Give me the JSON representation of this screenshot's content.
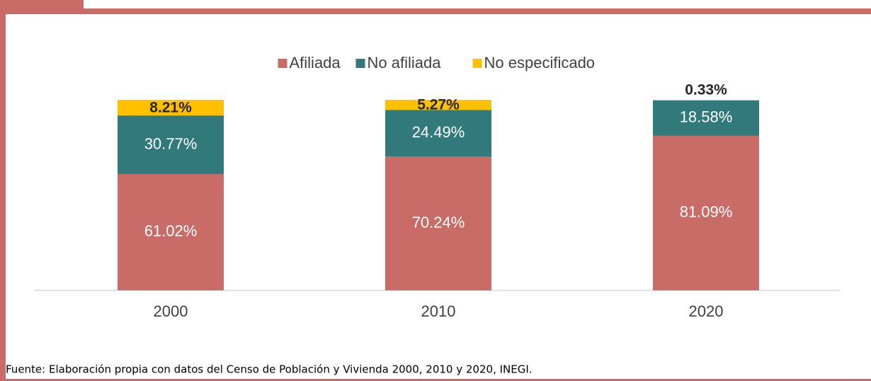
{
  "chart_data": {
    "type": "bar",
    "stacked": true,
    "categories": [
      "2000",
      "2010",
      "2020"
    ],
    "series": [
      {
        "name": "Afiliada",
        "color": "#c96b67",
        "values": [
          61.02,
          70.24,
          81.09
        ],
        "value_labels": [
          "61.02%",
          "70.24%",
          "81.09%"
        ]
      },
      {
        "name": "No afiliada",
        "color": "#31797b",
        "values": [
          30.77,
          24.49,
          18.58
        ],
        "value_labels": [
          "30.77%",
          "24.49%",
          "18.58%"
        ]
      },
      {
        "name": "No especificado",
        "color": "#ffc000",
        "values": [
          8.21,
          5.27,
          0.33
        ],
        "value_labels": [
          "8.21%",
          "5.27%",
          "0.33%"
        ]
      }
    ],
    "ylim": [
      0,
      100
    ],
    "legend": "top",
    "source": "Fuente: Elaboración propia con datos del Censo de Población y Vivienda 2000, 2010 y 2020, INEGI."
  }
}
